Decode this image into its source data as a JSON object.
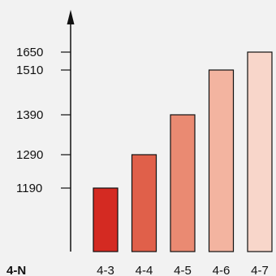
{
  "chart_data": {
    "type": "bar",
    "categories": [
      "4-3",
      "4-4",
      "4-5",
      "4-6",
      "4-7"
    ],
    "values": [
      1190,
      1290,
      1390,
      1510,
      1650
    ],
    "yticks": [
      1190,
      1290,
      1390,
      1510,
      1650
    ],
    "ytick_labels": [
      "1190",
      "1290",
      "1390",
      "1510",
      "1650"
    ],
    "xlabel": "4-N",
    "ylabel": "",
    "title": "",
    "grid": false,
    "colors": [
      "#d42a22",
      "#e0604a",
      "#ea8a72",
      "#f3b4a0",
      "#f8d6ca"
    ]
  }
}
